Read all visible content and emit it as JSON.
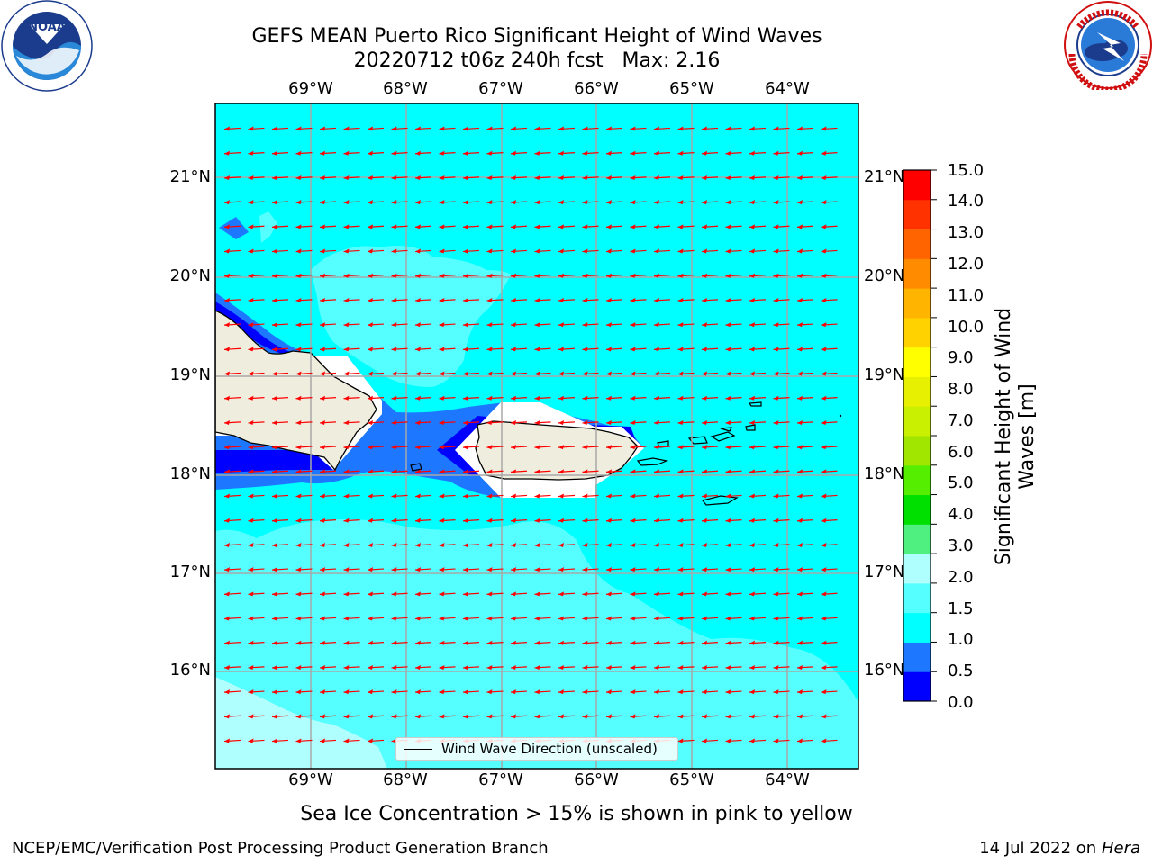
{
  "header": {
    "title_line1": "GEFS MEAN Puerto Rico Significant Height of Wind Waves",
    "title_line2": "20220712 t06z 240h fcst   Max: 2.16"
  },
  "logos": {
    "left": {
      "name": "noaa-logo",
      "text": "NOAA",
      "ring_text": "NATIONAL OCEANIC AND ATMOSPHERIC ADMINISTRATION · U.S. DEPARTMENT OF COMMERCE"
    },
    "right": {
      "name": "nws-logo",
      "ring_text": "NATIONAL WEATHER SERVICE"
    }
  },
  "map": {
    "lon_ticks": [
      "69°W",
      "68°W",
      "67°W",
      "66°W",
      "65°W",
      "64°W"
    ],
    "lat_ticks": [
      "21°N",
      "20°N",
      "19°N",
      "18°N",
      "17°N",
      "16°N"
    ],
    "legend_label": "Wind Wave Direction (unscaled)",
    "land_color": "#efedde",
    "arrow_color": "#ff0000"
  },
  "colorbar": {
    "label": "Significant Height of Wind Waves [m]",
    "ticks": [
      "15.0",
      "14.0",
      "13.0",
      "12.0",
      "11.0",
      "10.0",
      "9.0",
      "8.0",
      "7.0",
      "6.0",
      "5.0",
      "4.0",
      "3.0",
      "2.0",
      "1.5",
      "1.0",
      "0.5",
      "0.0"
    ],
    "colors": [
      "#0000ff",
      "#1e78ff",
      "#00ffff",
      "#55ffff",
      "#b0ffff",
      "#50f080",
      "#00e000",
      "#55ee00",
      "#a0e600",
      "#c8f000",
      "#e6f000",
      "#ffff00",
      "#ffd200",
      "#ffb400",
      "#ff8c00",
      "#ff6400",
      "#ff3200",
      "#ff0000"
    ]
  },
  "footer": {
    "sea_ice_note": "Sea Ice Concentration > 15% is shown in pink to yellow",
    "credit": "NCEP/EMC/Verification Post Processing Product Generation Branch",
    "date_prefix": "14 Jul 2022 on ",
    "machine": "Hera"
  }
}
